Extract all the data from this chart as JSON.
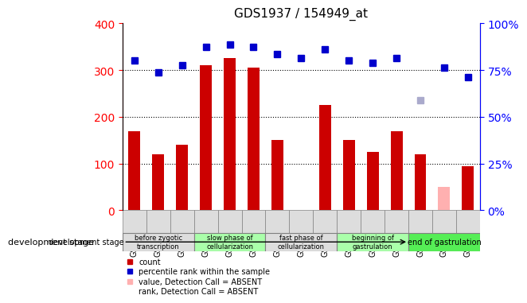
{
  "title": "GDS1937 / 154949_at",
  "samples": [
    "GSM90226",
    "GSM90227",
    "GSM90228",
    "GSM90229",
    "GSM90230",
    "GSM90231",
    "GSM90232",
    "GSM90233",
    "GSM90234",
    "GSM90255",
    "GSM90256",
    "GSM90257",
    "GSM90258",
    "GSM90259",
    "GSM90260"
  ],
  "bar_values": [
    170,
    120,
    140,
    310,
    325,
    305,
    150,
    null,
    225,
    150,
    125,
    170,
    120,
    null,
    95
  ],
  "bar_absent": [
    null,
    null,
    null,
    null,
    null,
    null,
    null,
    null,
    null,
    null,
    null,
    null,
    null,
    50,
    null
  ],
  "dot_values": [
    320,
    295,
    310,
    350,
    355,
    350,
    335,
    325,
    345,
    320,
    315,
    325,
    null,
    305,
    285
  ],
  "dot_absent": [
    null,
    null,
    null,
    null,
    null,
    null,
    null,
    null,
    null,
    null,
    null,
    null,
    235,
    null,
    null
  ],
  "bar_color": "#cc0000",
  "bar_absent_color": "#ffb0b0",
  "dot_color": "#0000cc",
  "dot_absent_color": "#aaaacc",
  "ylim_left": [
    0,
    400
  ],
  "ylim_right": [
    0,
    100
  ],
  "yticks_left": [
    0,
    100,
    200,
    300,
    400
  ],
  "yticks_right": [
    0,
    25,
    50,
    75,
    100
  ],
  "ytick_labels_right": [
    "0%",
    "25%",
    "50%",
    "75%",
    "100%"
  ],
  "grid_values": [
    100,
    200,
    300
  ],
  "stages": [
    {
      "label": "before zygotic\ntranscription",
      "start": 0,
      "end": 3,
      "color": "#dddddd"
    },
    {
      "label": "slow phase of\ncellularization",
      "start": 3,
      "end": 6,
      "color": "#aaffaa"
    },
    {
      "label": "fast phase of\ncellularization",
      "start": 6,
      "end": 9,
      "color": "#dddddd"
    },
    {
      "label": "beginning of\ngastrulation",
      "start": 9,
      "end": 12,
      "color": "#aaffaa"
    },
    {
      "label": "end of gastrulation",
      "start": 12,
      "end": 15,
      "color": "#55ee55"
    }
  ],
  "xlabel_stage": "development stage",
  "legend_items": [
    {
      "label": "count",
      "color": "#cc0000",
      "marker": "s"
    },
    {
      "label": "percentile rank within the sample",
      "color": "#0000cc",
      "marker": "s"
    },
    {
      "label": "value, Detection Call = ABSENT",
      "color": "#ffb0b0",
      "marker": "s"
    },
    {
      "label": "rank, Detection Call = ABSENT",
      "color": "#aaaacc",
      "marker": "s"
    }
  ]
}
